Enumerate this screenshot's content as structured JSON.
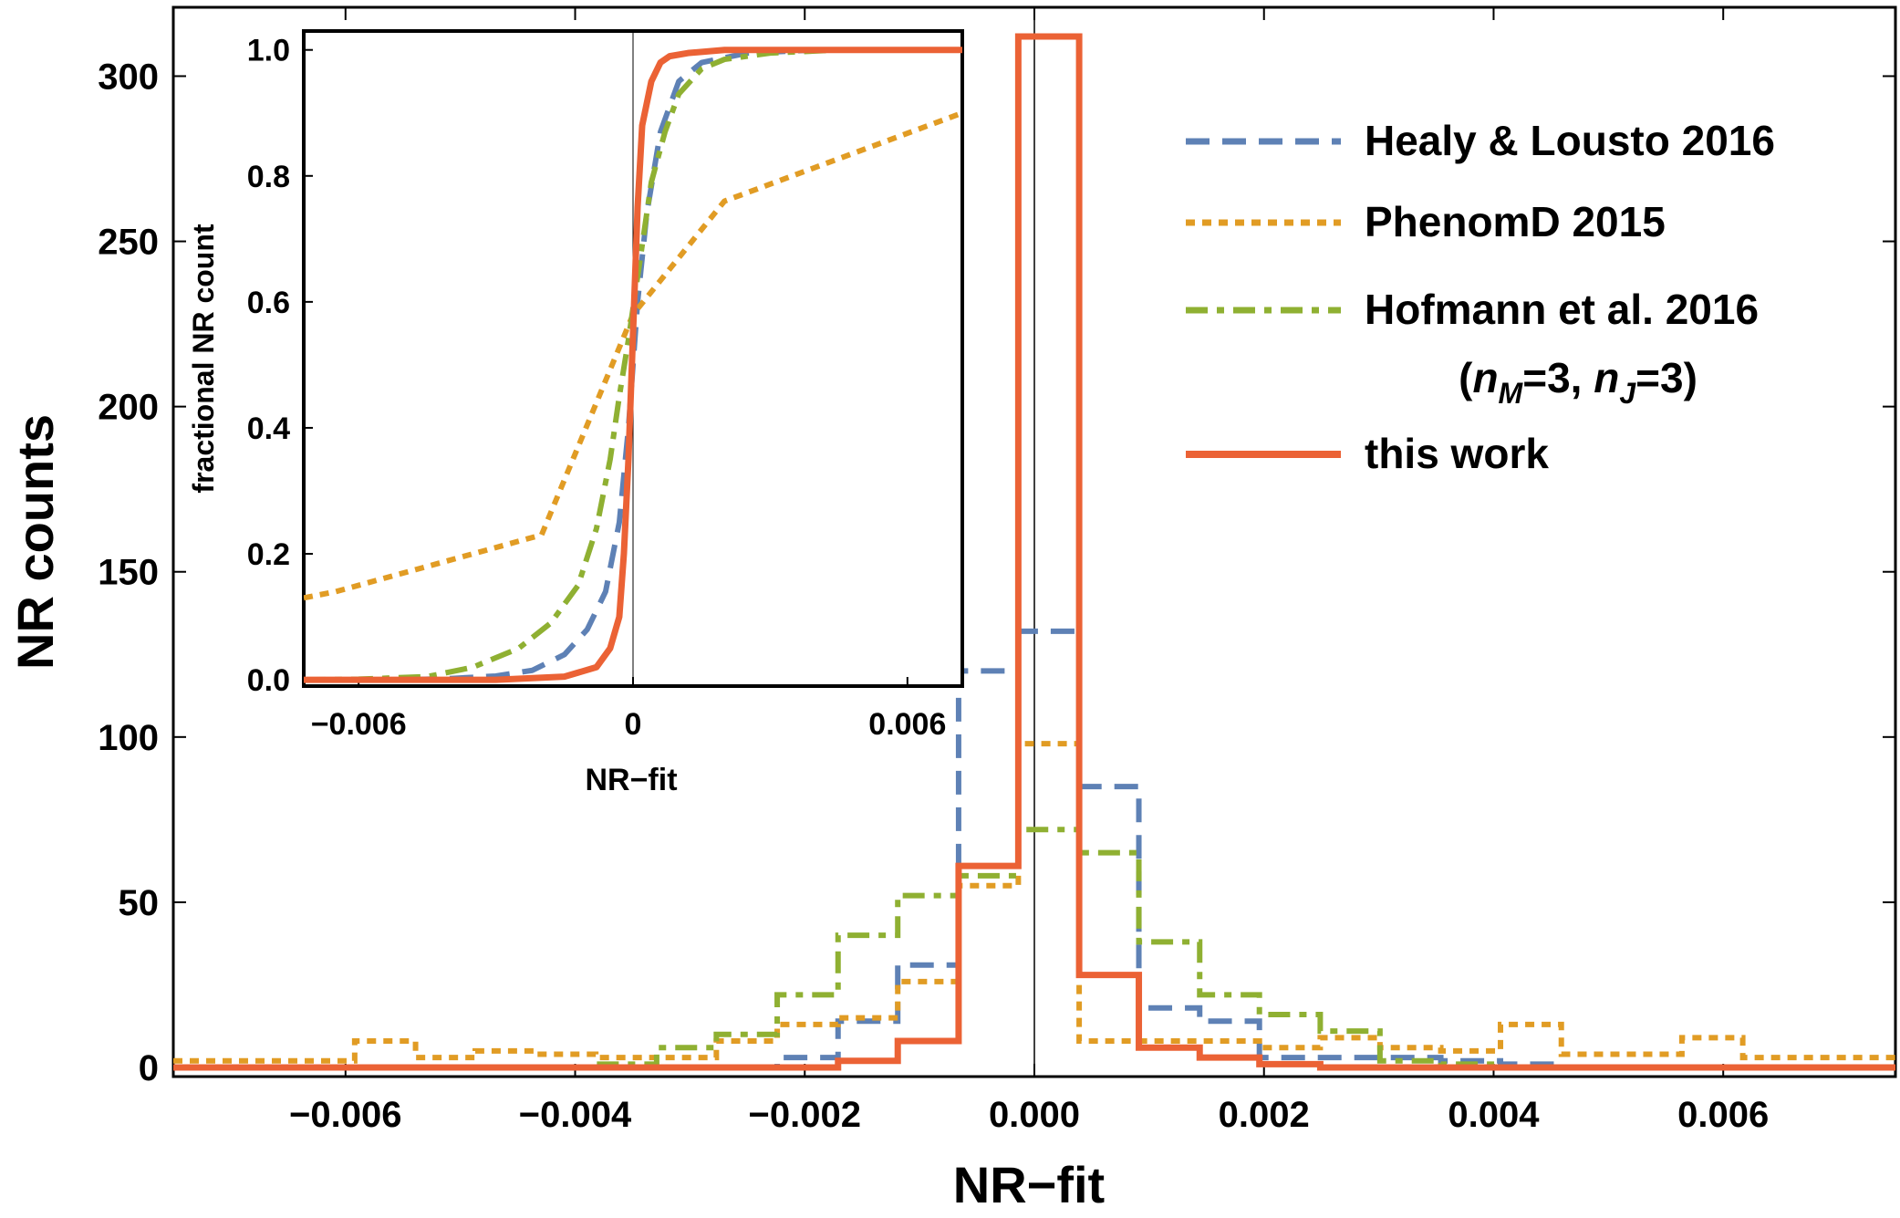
{
  "chart_data": [
    {
      "id": "main",
      "type": "histogram",
      "xlabel": "NR−fit",
      "ylabel": "NR counts",
      "xlim": [
        -0.0075,
        0.0075
      ],
      "ylim": [
        0,
        312
      ],
      "xticks": [
        -0.006,
        -0.004,
        -0.002,
        0.0,
        0.002,
        0.004,
        0.006
      ],
      "xtick_labels": [
        "−0.006",
        "−0.004",
        "−0.002",
        "0.000",
        "0.002",
        "0.004",
        "0.006"
      ],
      "yticks": [
        0,
        50,
        100,
        150,
        200,
        250,
        300
      ],
      "ytick_labels": [
        "0",
        "50",
        "100",
        "150",
        "200",
        "250",
        "300"
      ],
      "vline_x": 0.0,
      "bin_edges": [
        -0.0075,
        -0.00697,
        -0.00644,
        -0.00592,
        -0.00539,
        -0.00487,
        -0.00434,
        -0.00382,
        -0.00329,
        -0.00277,
        -0.00224,
        -0.00171,
        -0.00119,
        -0.00066,
        -0.00014,
        0.00039,
        0.00091,
        0.00144,
        0.00196,
        0.00249,
        0.00301,
        0.00354,
        0.00406,
        0.00459,
        0.00512,
        0.00564,
        0.00617,
        0.00669,
        0.0075
      ],
      "series": [
        {
          "name": "Healy & Lousto 2016",
          "color": "#5E81B5",
          "style": "dashed",
          "counts": [
            0,
            0,
            0,
            0,
            0,
            0,
            0,
            0,
            0,
            0,
            3,
            14,
            31,
            120,
            132,
            85,
            18,
            14,
            3,
            3,
            3,
            2,
            1,
            0,
            0,
            0,
            0,
            0
          ]
        },
        {
          "name": "PhenomD 2015",
          "color": "#E19C24",
          "style": "dotted",
          "counts": [
            2,
            2,
            2,
            8,
            3,
            5,
            4,
            3,
            3,
            8,
            13,
            15,
            26,
            55,
            98,
            8,
            8,
            8,
            6,
            9,
            6,
            5,
            13,
            4,
            4,
            9,
            3,
            3
          ]
        },
        {
          "name": "Hofmann et al. 2016",
          "subtitle": "(nM=3, nJ=3)",
          "color": "#8FB032",
          "style": "dashdot",
          "counts": [
            0,
            0,
            0,
            0,
            0,
            0,
            0,
            1,
            6,
            10,
            22,
            40,
            52,
            58,
            72,
            65,
            38,
            22,
            16,
            11,
            2,
            1,
            0,
            0,
            0,
            0,
            0,
            0
          ]
        },
        {
          "name": "this work",
          "color": "#EB6235",
          "style": "solid",
          "counts": [
            0,
            0,
            0,
            0,
            0,
            0,
            0,
            0,
            0,
            0,
            0,
            2,
            8,
            61,
            312,
            28,
            6,
            3,
            1,
            0,
            0,
            0,
            0,
            0,
            0,
            0,
            0,
            0
          ]
        }
      ],
      "legend_subscript_labels": {
        "m": "n",
        "sub_m": "M",
        "eq_m": "=3, ",
        "j": "n",
        "sub_j": "J",
        "eq_j": "=3)",
        "open": "("
      }
    },
    {
      "id": "inset",
      "type": "line",
      "title": "",
      "xlabel": "NR−fit",
      "ylabel": "fractional NR count",
      "xlim": [
        -0.0072,
        0.0072
      ],
      "ylim": [
        -0.01,
        1.03
      ],
      "xticks": [
        -0.006,
        0,
        0.006
      ],
      "xtick_labels": [
        "−0.006",
        "0",
        "0.006"
      ],
      "yticks": [
        0,
        0.2,
        0.4,
        0.6,
        0.8,
        1.0
      ],
      "ytick_labels": [
        "0.0",
        "0.2",
        "0.4",
        "0.6",
        "0.8",
        "1.0"
      ],
      "vline_x": 0.0,
      "series": [
        {
          "name": "Healy & Lousto 2016",
          "color": "#5E81B5",
          "style": "dashed",
          "x": [
            -0.0072,
            -0.005,
            -0.004,
            -0.003,
            -0.0022,
            -0.0015,
            -0.001,
            -0.0006,
            -0.0003,
            -0.0001,
            0.0,
            0.0001,
            0.0003,
            0.0006,
            0.001,
            0.0015,
            0.0025,
            0.004,
            0.0072
          ],
          "y": [
            0.0,
            0.0,
            0.002,
            0.006,
            0.015,
            0.04,
            0.08,
            0.14,
            0.25,
            0.4,
            0.5,
            0.6,
            0.74,
            0.87,
            0.95,
            0.98,
            0.995,
            1.0,
            1.0
          ]
        },
        {
          "name": "PhenomD 2015",
          "color": "#E19C24",
          "style": "dotted",
          "x": [
            -0.0072,
            -0.0065,
            -0.002,
            0.0,
            0.002,
            0.0072
          ],
          "y": [
            0.13,
            0.14,
            0.23,
            0.58,
            0.76,
            0.9
          ]
        },
        {
          "name": "Hofmann et al. 2016",
          "color": "#8FB032",
          "style": "dashdot",
          "x": [
            -0.0072,
            -0.006,
            -0.0045,
            -0.0035,
            -0.0025,
            -0.0018,
            -0.0012,
            -0.0008,
            -0.0005,
            -0.0003,
            -0.0001,
            0.0,
            0.0002,
            0.0004,
            0.0007,
            0.001,
            0.0015,
            0.002,
            0.003,
            0.0045,
            0.0072
          ],
          "y": [
            0.0,
            0.001,
            0.005,
            0.02,
            0.05,
            0.09,
            0.15,
            0.24,
            0.35,
            0.45,
            0.54,
            0.59,
            0.69,
            0.79,
            0.87,
            0.93,
            0.97,
            0.985,
            0.995,
            1.0,
            1.0
          ]
        },
        {
          "name": "this work",
          "color": "#EB6235",
          "style": "solid",
          "x": [
            -0.0072,
            -0.005,
            -0.003,
            -0.0015,
            -0.0008,
            -0.0005,
            -0.0003,
            -0.0002,
            -0.0001,
            0.0,
            0.0001,
            0.0002,
            0.0004,
            0.0006,
            0.0008,
            0.0012,
            0.002,
            0.004,
            0.0072
          ],
          "y": [
            0.0,
            0.0,
            0.0,
            0.005,
            0.02,
            0.05,
            0.1,
            0.2,
            0.35,
            0.55,
            0.75,
            0.88,
            0.95,
            0.98,
            0.99,
            0.995,
            1.0,
            1.0,
            1.0
          ]
        }
      ]
    }
  ]
}
